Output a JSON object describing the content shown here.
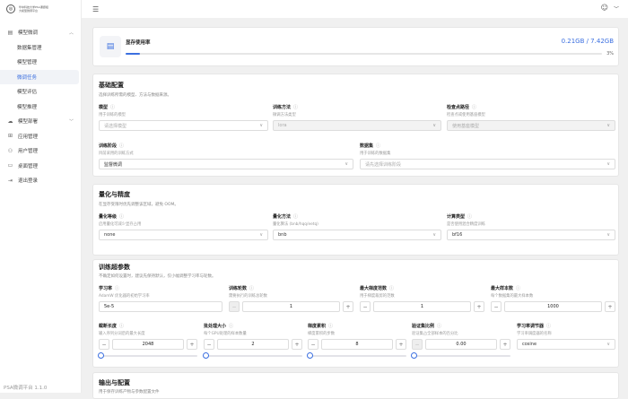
{
  "app": {
    "logo_line1": "华中科技大学PSA课题组",
    "logo_line2": "大模型微调平台",
    "version": "PSA微调平台 1.1.0"
  },
  "sidebar": {
    "items": [
      {
        "label": "模型微调",
        "icon": "model-finetune-icon",
        "expanded": true
      },
      {
        "label": "数据集管理"
      },
      {
        "label": "模型管理"
      },
      {
        "label": "微调任务",
        "active": true
      },
      {
        "label": "模型评估"
      },
      {
        "label": "模型推理"
      },
      {
        "label": "模型部署",
        "icon": "cloud-icon"
      },
      {
        "label": "应用管理",
        "icon": "apps-icon"
      },
      {
        "label": "用户管理",
        "icon": "user-icon"
      },
      {
        "label": "桌面管理",
        "icon": "desktop-icon"
      },
      {
        "label": "退出登录",
        "icon": "logout-icon"
      }
    ]
  },
  "memory": {
    "title": "显存使用率",
    "value": "0.21GB / 7.42GB",
    "percent_label": "3%",
    "percent": 3,
    "accent": "#3b6fe0"
  },
  "basic": {
    "title": "基础配置",
    "desc": "选择训练所需的模型、方法与数据来源。",
    "fields": [
      {
        "label": "模型",
        "desc": "用于训练的模型",
        "placeholder": "请选择模型"
      },
      {
        "label": "训练方法",
        "desc": "微调方法类型",
        "value": "lora"
      },
      {
        "label": "检查点路径",
        "desc": "检查点或使用基座模型",
        "value": "使用基座模型"
      },
      {
        "label": "训练阶段",
        "desc": "目前采用的训练方式",
        "value": "监督微调"
      },
      {
        "label": "数据集",
        "desc": "用于训练的数据集",
        "placeholder": "请先选择训练阶段"
      }
    ]
  },
  "quant": {
    "title": "量化与精度",
    "desc": "在显存受限时优先调整该区域，避免 OOM。",
    "fields": [
      {
        "label": "量化等级",
        "desc": "启用量化可减少显存占用",
        "value": "none"
      },
      {
        "label": "量化方法",
        "desc": "量化算法 (bnb/hqq/eetq)",
        "value": "bnb"
      },
      {
        "label": "计算类型",
        "desc": "是否使用混合精度训练",
        "value": "bf16"
      }
    ]
  },
  "hyper": {
    "title": "训练超参数",
    "desc": "不确定如何设置时，建议先保持默认，仅小幅调整学习率与轮数。",
    "fields": [
      {
        "label": "学习率",
        "desc": "AdamW 优化器的初始学习率",
        "value": "5e-5"
      },
      {
        "label": "训练轮数",
        "desc": "需要执行的训练总轮数",
        "value": "1"
      },
      {
        "label": "最大梯度范数",
        "desc": "用于梯度裁剪的范数",
        "value": "1"
      },
      {
        "label": "最大样本数",
        "desc": "每个数据集的最大样本数",
        "value": "1000"
      },
      {
        "label": "截断长度",
        "desc": "输入序列分词后的最大长度",
        "value": "2048"
      },
      {
        "label": "批处理大小",
        "desc": "每个GPU处理的样本数量",
        "value": "2"
      },
      {
        "label": "梯度累积",
        "desc": "梯度累积的步数",
        "value": "8"
      },
      {
        "label": "验证集比例",
        "desc": "验证集占全部样本的百分比",
        "value": "0.00"
      },
      {
        "label": "学习率调节器",
        "desc": "学习率调度器的名称",
        "value": "cosine"
      }
    ]
  },
  "output": {
    "title": "输出与配置",
    "desc": "用于保存训练产物与参数配置文件"
  }
}
